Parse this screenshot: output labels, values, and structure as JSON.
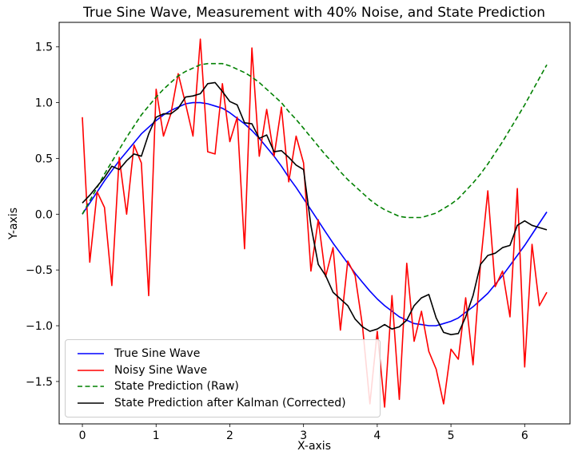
{
  "chart_data": {
    "type": "line",
    "title": "True Sine Wave, Measurement with 40% Noise, and State Prediction",
    "xlabel": "X-axis",
    "ylabel": "Y-axis",
    "xlim": [
      -0.315,
      6.615
    ],
    "ylim": [
      -1.88,
      1.72
    ],
    "xticks": [
      0,
      1,
      2,
      3,
      4,
      5,
      6
    ],
    "yticks": [
      -1.5,
      -1.0,
      -0.5,
      0.0,
      0.5,
      1.0,
      1.5
    ],
    "grid": false,
    "legend_position": "lower left",
    "x": [
      0.0,
      0.1,
      0.2,
      0.3,
      0.4,
      0.5,
      0.6,
      0.7,
      0.8,
      0.9,
      1.0,
      1.1,
      1.2,
      1.3,
      1.4,
      1.5,
      1.6,
      1.7,
      1.8,
      1.9,
      2.0,
      2.1,
      2.2,
      2.3,
      2.4,
      2.5,
      2.6,
      2.7,
      2.8,
      2.9,
      3.0,
      3.1,
      3.2,
      3.3,
      3.4,
      3.5,
      3.6,
      3.7,
      3.8,
      3.9,
      4.0,
      4.1,
      4.2,
      4.3,
      4.4,
      4.5,
      4.6,
      4.7,
      4.8,
      4.9,
      5.0,
      5.1,
      5.2,
      5.3,
      5.4,
      5.5,
      5.6,
      5.7,
      5.8,
      5.9,
      6.0,
      6.1,
      6.2,
      6.3
    ],
    "series": [
      {
        "name": "True Sine Wave",
        "color": "#0000ff",
        "style": "solid",
        "values": [
          0.0,
          0.1,
          0.2,
          0.3,
          0.39,
          0.48,
          0.56,
          0.64,
          0.72,
          0.78,
          0.84,
          0.89,
          0.93,
          0.96,
          0.99,
          1.0,
          1.0,
          0.99,
          0.97,
          0.95,
          0.91,
          0.86,
          0.81,
          0.75,
          0.68,
          0.6,
          0.52,
          0.43,
          0.33,
          0.24,
          0.14,
          0.04,
          -0.06,
          -0.16,
          -0.26,
          -0.35,
          -0.44,
          -0.53,
          -0.61,
          -0.69,
          -0.76,
          -0.82,
          -0.87,
          -0.92,
          -0.95,
          -0.98,
          -0.99,
          -1.0,
          -1.0,
          -0.98,
          -0.96,
          -0.93,
          -0.88,
          -0.83,
          -0.77,
          -0.71,
          -0.63,
          -0.55,
          -0.46,
          -0.37,
          -0.28,
          -0.18,
          -0.08,
          0.02
        ]
      },
      {
        "name": "Noisy Sine Wave",
        "color": "#ff0000",
        "style": "solid",
        "values": [
          0.87,
          -0.43,
          0.2,
          0.06,
          -0.64,
          0.51,
          0.0,
          0.62,
          0.46,
          -0.73,
          1.12,
          0.7,
          0.9,
          1.26,
          0.99,
          0.7,
          1.57,
          0.56,
          0.54,
          1.17,
          0.65,
          0.87,
          -0.31,
          1.49,
          0.52,
          0.94,
          0.52,
          0.96,
          0.29,
          0.7,
          0.46,
          -0.51,
          -0.05,
          -0.56,
          -0.3,
          -1.04,
          -0.42,
          -0.55,
          -1.0,
          -1.7,
          -1.05,
          -1.73,
          -0.73,
          -1.66,
          -0.44,
          -1.14,
          -0.87,
          -1.23,
          -1.39,
          -1.7,
          -1.21,
          -1.3,
          -0.75,
          -1.35,
          -0.45,
          0.21,
          -0.65,
          -0.51,
          -0.92,
          0.23,
          -1.37,
          -0.27,
          -0.82,
          -0.7
        ]
      },
      {
        "name": "State Prediction (Raw)",
        "color": "#008000",
        "style": "dashed",
        "values": [
          0.0,
          0.12,
          0.24,
          0.36,
          0.47,
          0.58,
          0.69,
          0.79,
          0.89,
          0.97,
          1.05,
          1.12,
          1.18,
          1.24,
          1.28,
          1.31,
          1.34,
          1.35,
          1.35,
          1.35,
          1.33,
          1.3,
          1.27,
          1.23,
          1.18,
          1.12,
          1.06,
          1.0,
          0.92,
          0.85,
          0.77,
          0.69,
          0.61,
          0.53,
          0.46,
          0.38,
          0.31,
          0.25,
          0.19,
          0.13,
          0.08,
          0.04,
          0.01,
          -0.02,
          -0.03,
          -0.03,
          -0.03,
          -0.01,
          0.01,
          0.05,
          0.09,
          0.14,
          0.21,
          0.28,
          0.36,
          0.45,
          0.55,
          0.65,
          0.76,
          0.87,
          0.98,
          1.1,
          1.22,
          1.34
        ]
      },
      {
        "name": "State Prediction after Kalman (Corrected)",
        "color": "#000000",
        "style": "solid",
        "values": [
          0.1,
          0.17,
          0.25,
          0.33,
          0.43,
          0.4,
          0.48,
          0.54,
          0.52,
          0.72,
          0.87,
          0.9,
          0.9,
          0.95,
          1.05,
          1.06,
          1.08,
          1.17,
          1.18,
          1.1,
          1.01,
          0.98,
          0.82,
          0.81,
          0.68,
          0.71,
          0.56,
          0.57,
          0.51,
          0.44,
          0.4,
          -0.1,
          -0.45,
          -0.55,
          -0.7,
          -0.76,
          -0.82,
          -0.94,
          -1.01,
          -1.05,
          -1.03,
          -0.99,
          -1.03,
          -1.01,
          -0.95,
          -0.82,
          -0.75,
          -0.72,
          -0.93,
          -1.06,
          -1.08,
          -1.07,
          -0.92,
          -0.73,
          -0.45,
          -0.37,
          -0.35,
          -0.3,
          -0.28,
          -0.1,
          -0.06,
          -0.1,
          -0.12,
          -0.14
        ]
      }
    ]
  }
}
